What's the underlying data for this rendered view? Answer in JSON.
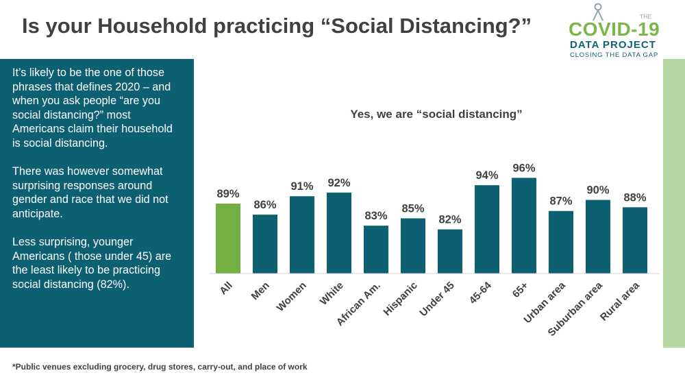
{
  "title": "Is your Household practicing “Social Distancing?”",
  "logo": {
    "the": "THE",
    "main": "COVID-19",
    "sub": "DATA PROJECT",
    "tagline": "CLOSING THE DATA GAP"
  },
  "sidebar": {
    "paragraphs": [
      "It’s likely to be the one of those phrases that defines 2020 – and when you ask people “are you social distancing?”  most Americans claim their household is social distancing.",
      "There was however somewhat surprising responses around gender and race that we did not anticipate.",
      "Less surprising,  younger Americans ( those under 45) are the least likely to be practicing  social distancing (82%)."
    ]
  },
  "footnote": "*Public venues excluding grocery, drug stores, carry-out, and place of work",
  "colors": {
    "primary": "#0d5f72",
    "highlight": "#72b043",
    "accent_green_light": "#b3d69e",
    "text": "#404040"
  },
  "chart_data": {
    "type": "bar",
    "title": "Yes, we are “social distancing”",
    "categories": [
      "All",
      "Men",
      "Women",
      "White",
      "African Am.",
      "Hispanic",
      "Under 45",
      "45-64",
      "65+",
      "Urban area",
      "Suburban area",
      "Rural area"
    ],
    "values": [
      89,
      86,
      91,
      92,
      83,
      85,
      82,
      94,
      96,
      87,
      90,
      88
    ],
    "value_labels": [
      "89%",
      "86%",
      "91%",
      "92%",
      "83%",
      "85%",
      "82%",
      "94%",
      "96%",
      "87%",
      "90%",
      "88%"
    ],
    "highlight_index": 0,
    "ylim": [
      70,
      100
    ],
    "grid": false,
    "legend": "none"
  }
}
